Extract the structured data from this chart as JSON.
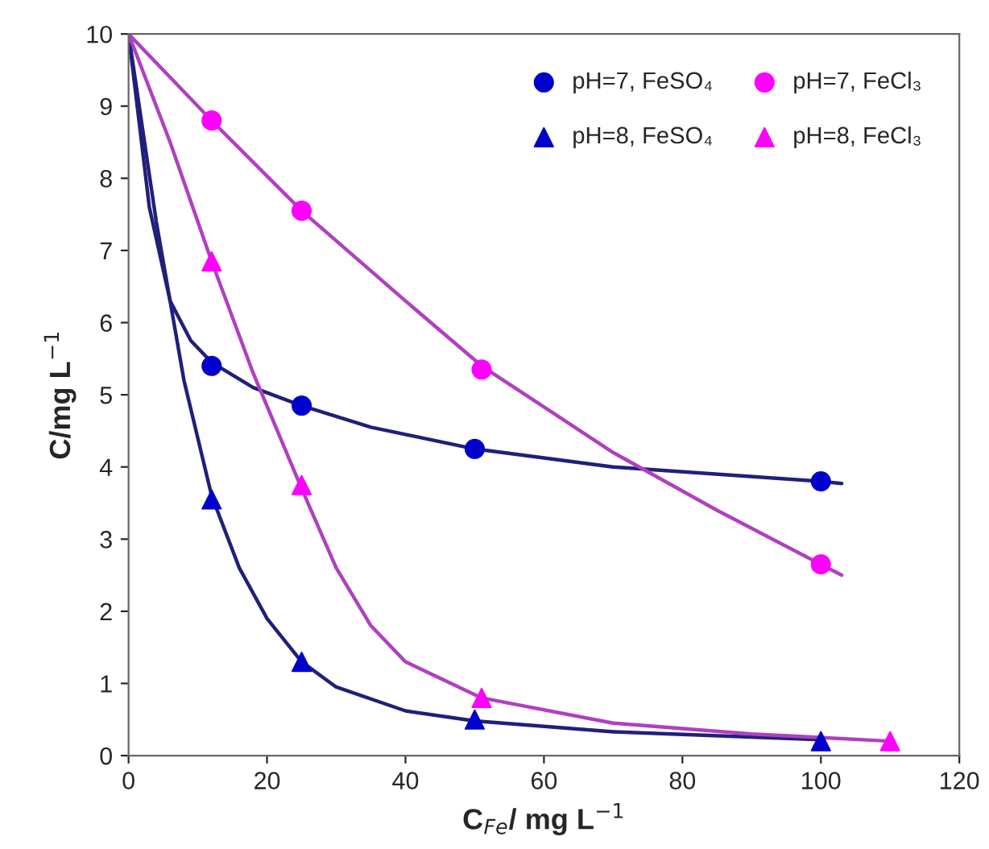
{
  "chart_data": {
    "type": "scatter",
    "xlabel": "C$_{Fe}$/ mg L$^{−1}$",
    "ylabel": "C/mg L$^{−1}$",
    "xlim": [
      0,
      120
    ],
    "xticks": [
      0,
      20,
      40,
      60,
      80,
      100,
      120
    ],
    "ylim": [
      0,
      10
    ],
    "yticks": [
      0,
      1,
      2,
      3,
      4,
      5,
      6,
      7,
      8,
      9,
      10
    ],
    "grid": false,
    "legend": "top right",
    "series": [
      {
        "name": "pH=7, FeSO₄",
        "color": "#0000cc",
        "marker": "circle",
        "x": [
          12,
          25,
          50,
          100
        ],
        "values": [
          5.4,
          4.85,
          4.25,
          3.8
        ]
      },
      {
        "name": "pH=7, FeCl₃",
        "color": "#ff00ff",
        "marker": "circle",
        "x": [
          12,
          25,
          51,
          100
        ],
        "values": [
          8.8,
          7.55,
          5.35,
          2.65
        ]
      },
      {
        "name": "pH=8, FeSO₄",
        "color": "#0000cc",
        "marker": "triangle",
        "x": [
          12,
          25,
          50,
          100
        ],
        "values": [
          3.55,
          1.3,
          0.5,
          0.2
        ]
      },
      {
        "name": "pH=8, FeCl₃",
        "color": "#ff00ff",
        "marker": "triangle",
        "x": [
          12,
          25,
          51,
          110
        ],
        "values": [
          6.85,
          3.75,
          0.8,
          0.2
        ]
      },
      {
        "type": "line",
        "color": "#20207a",
        "x": [
          0,
          3,
          6,
          9,
          12,
          18,
          25,
          35,
          50,
          70,
          100,
          103
        ],
        "values": [
          10,
          7.6,
          6.3,
          5.75,
          5.45,
          5.1,
          4.85,
          4.55,
          4.25,
          4.0,
          3.8,
          3.77
        ]
      },
      {
        "type": "line",
        "color": "#b040c0",
        "x": [
          0,
          12,
          25,
          40,
          51,
          70,
          85,
          100,
          103
        ],
        "values": [
          10,
          8.8,
          7.55,
          6.3,
          5.4,
          4.2,
          3.4,
          2.65,
          2.5
        ]
      },
      {
        "type": "line",
        "color": "#20207a",
        "x": [
          0,
          4,
          8,
          12,
          16,
          20,
          25,
          30,
          40,
          50,
          70,
          100
        ],
        "values": [
          10,
          7.4,
          5.2,
          3.6,
          2.6,
          1.9,
          1.3,
          0.95,
          0.62,
          0.48,
          0.33,
          0.22
        ]
      },
      {
        "type": "line",
        "color": "#b040c0",
        "x": [
          0,
          6,
          12,
          18,
          25,
          30,
          35,
          40,
          51,
          70,
          90,
          110
        ],
        "values": [
          10,
          8.5,
          6.85,
          5.3,
          3.7,
          2.6,
          1.8,
          1.3,
          0.8,
          0.45,
          0.3,
          0.2
        ]
      }
    ]
  }
}
